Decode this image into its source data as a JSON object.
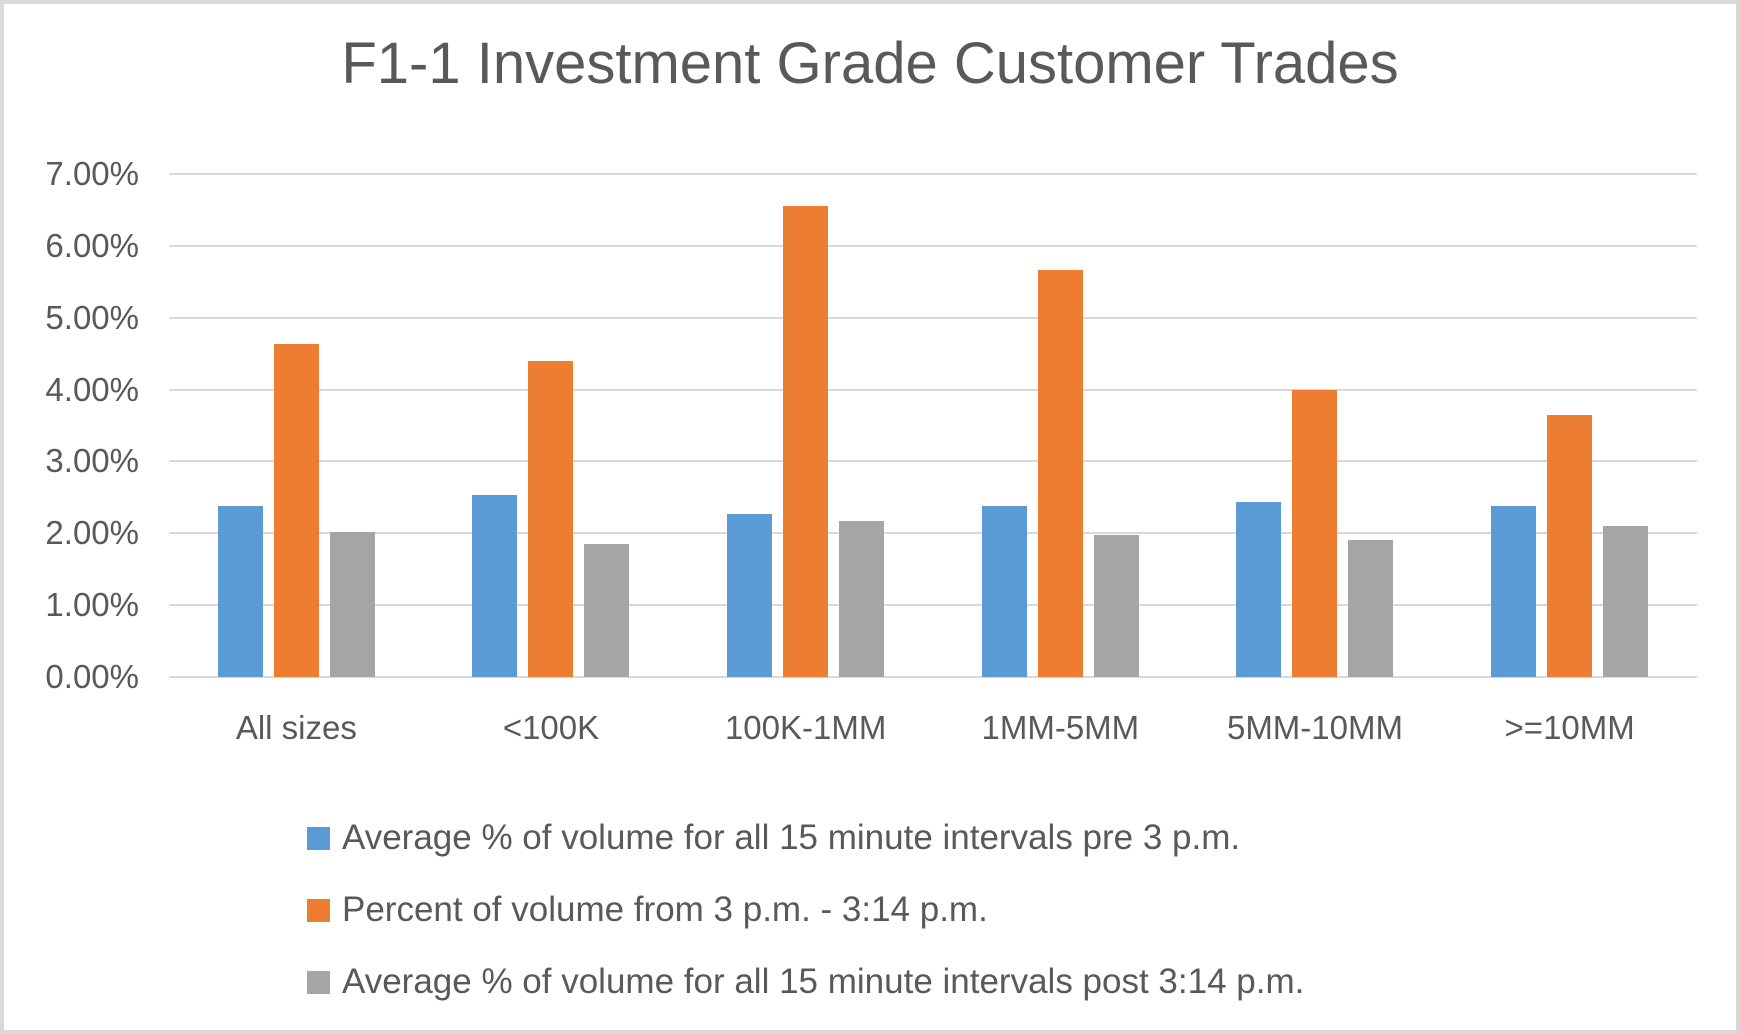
{
  "chart_data": {
    "type": "bar",
    "title": "F1-1 Investment Grade Customer Trades",
    "categories": [
      "All sizes",
      "<100K",
      "100K-1MM",
      "1MM-5MM",
      "5MM-10MM",
      ">=10MM"
    ],
    "series": [
      {
        "name": "Average % of volume for all 15 minute intervals pre 3 p.m.",
        "color": "#5B9BD5",
        "values": [
          2.38,
          2.54,
          2.27,
          2.38,
          2.44,
          2.38
        ]
      },
      {
        "name": "Percent of volume from 3 p.m. - 3:14 p.m.",
        "color": "#ED7D31",
        "values": [
          4.64,
          4.4,
          6.56,
          5.67,
          3.99,
          3.64
        ]
      },
      {
        "name": "Average % of volume for all 15 minute intervals post 3:14 p.m.",
        "color": "#A5A5A5",
        "values": [
          2.02,
          1.85,
          2.17,
          1.97,
          1.91,
          2.1
        ]
      }
    ],
    "y_axis": {
      "min": 0,
      "max": 7,
      "ticks": [
        "0.00%",
        "1.00%",
        "2.00%",
        "3.00%",
        "4.00%",
        "5.00%",
        "6.00%",
        "7.00%"
      ]
    },
    "grid": true,
    "legend_position": "bottom",
    "colors": {
      "grid": "#D9D9D9",
      "text": "#595959",
      "background": "#FFFFFF",
      "frame_border": "#D9D9D9"
    }
  }
}
